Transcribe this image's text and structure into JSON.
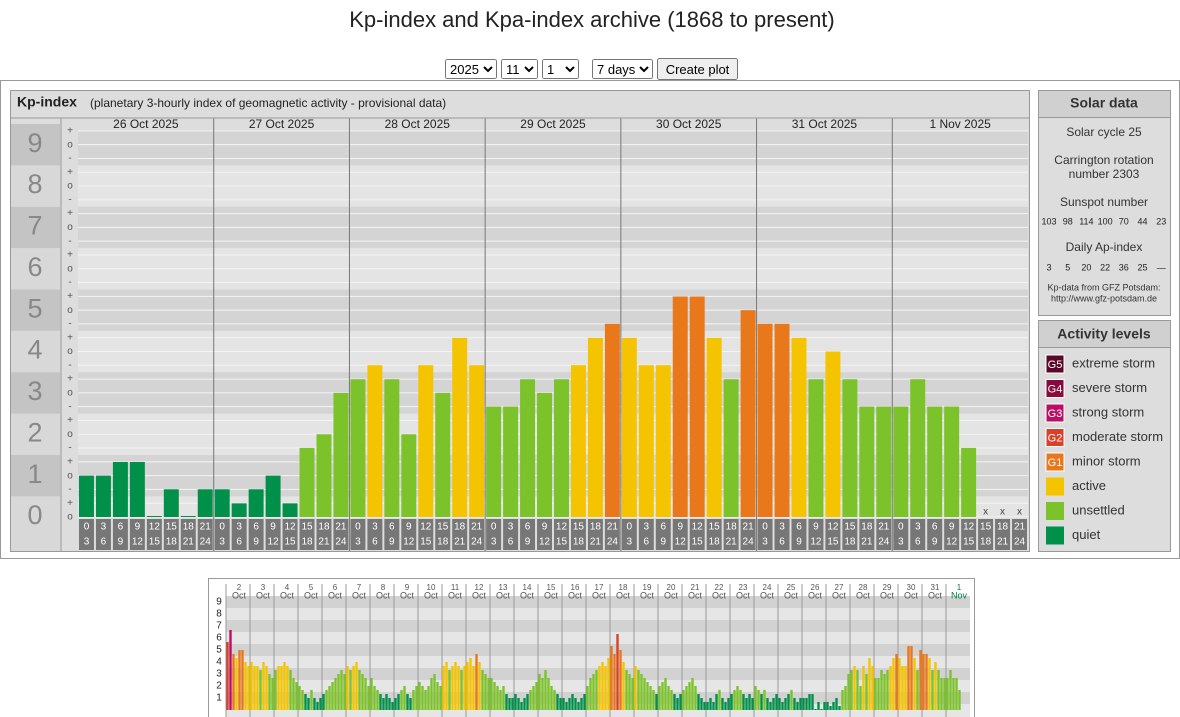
{
  "page": {
    "title": "Kp-index and Kpa-index archive (1868 to present)",
    "controls": {
      "year": "2025",
      "month": "11",
      "day": "1",
      "span": "7 days",
      "button": "Create plot"
    }
  },
  "chart_data": [
    {
      "type": "bar",
      "title": "Kp-index",
      "subtitle": "(planetary 3-hourly index of geomagnetic activity - provisional data)",
      "days": [
        "26 Oct 2025",
        "27 Oct 2025",
        "28 Oct 2025",
        "29 Oct 2025",
        "30 Oct 2025",
        "31 Oct 2025",
        "1 Nov 2025"
      ],
      "hours": [
        [
          "0",
          "3"
        ],
        [
          "3",
          "6"
        ],
        [
          "6",
          "9"
        ],
        [
          "9",
          "12"
        ],
        [
          "12",
          "15"
        ],
        [
          "15",
          "18"
        ],
        [
          "18",
          "21"
        ],
        [
          "21",
          "24"
        ]
      ],
      "values": [
        1,
        1,
        1.33,
        1.33,
        0,
        0.67,
        0,
        0.67,
        0.67,
        0.33,
        0.67,
        1,
        0.33,
        1.67,
        2,
        3,
        3.33,
        3.67,
        3.33,
        2,
        3.67,
        3,
        4.33,
        3.67,
        2.67,
        2.67,
        3.33,
        3,
        3.33,
        3.67,
        4.33,
        4.67,
        4.33,
        3.67,
        3.67,
        5.33,
        5.33,
        4.33,
        3.33,
        5,
        4.67,
        4.67,
        4.33,
        3.33,
        4,
        3.33,
        2.67,
        2.67,
        2.67,
        3.33,
        2.67,
        2.67,
        1.67,
        null,
        null,
        null
      ],
      "colors": [
        "#00904a",
        "#00904a",
        "#00904a",
        "#00904a",
        "#00904a",
        "#00904a",
        "#00904a",
        "#00904a",
        "#00904a",
        "#00904a",
        "#00904a",
        "#00904a",
        "#00904a",
        "#7cc22a",
        "#7cc22a",
        "#7cc22a",
        "#7cc22a",
        "#f5c400",
        "#7cc22a",
        "#7cc22a",
        "#f5c400",
        "#7cc22a",
        "#f5c400",
        "#f5c400",
        "#7cc22a",
        "#7cc22a",
        "#7cc22a",
        "#7cc22a",
        "#7cc22a",
        "#f5c400",
        "#f5c400",
        "#e8781a",
        "#f5c400",
        "#f5c400",
        "#f5c400",
        "#e8781a",
        "#e8781a",
        "#f5c400",
        "#7cc22a",
        "#e8781a",
        "#e8781a",
        "#e8781a",
        "#f5c400",
        "#7cc22a",
        "#f5c400",
        "#7cc22a",
        "#7cc22a",
        "#7cc22a",
        "#7cc22a",
        "#7cc22a",
        "#7cc22a",
        "#7cc22a",
        "#7cc22a",
        null,
        null,
        null
      ],
      "ylim": [
        0,
        9.33
      ],
      "yticks": [
        0,
        1,
        2,
        3,
        4,
        5,
        6,
        7,
        8,
        9
      ],
      "minor_labels": [
        "-",
        "o",
        "+"
      ],
      "missing_label": "x"
    },
    {
      "type": "bar",
      "days": [
        [
          "2",
          "Oct"
        ],
        [
          "3",
          "Oct"
        ],
        [
          "4",
          "Oct"
        ],
        [
          "5",
          "Oct"
        ],
        [
          "6",
          "Oct"
        ],
        [
          "7",
          "Oct"
        ],
        [
          "8",
          "Oct"
        ],
        [
          "9",
          "Oct"
        ],
        [
          "10",
          "Oct"
        ],
        [
          "11",
          "Oct"
        ],
        [
          "12",
          "Oct"
        ],
        [
          "13",
          "Oct"
        ],
        [
          "14",
          "Oct"
        ],
        [
          "15",
          "Oct"
        ],
        [
          "16",
          "Oct"
        ],
        [
          "17",
          "Oct"
        ],
        [
          "18",
          "Oct"
        ],
        [
          "19",
          "Oct"
        ],
        [
          "20",
          "Oct"
        ],
        [
          "21",
          "Oct"
        ],
        [
          "22",
          "Oct"
        ],
        [
          "23",
          "Oct"
        ],
        [
          "24",
          "Oct"
        ],
        [
          "25",
          "Oct"
        ],
        [
          "26",
          "Oct"
        ],
        [
          "27",
          "Oct"
        ],
        [
          "28",
          "Oct"
        ],
        [
          "29",
          "Oct"
        ],
        [
          "30",
          "Oct"
        ],
        [
          "31",
          "Oct"
        ],
        [
          "1",
          "Nov"
        ]
      ],
      "values": [
        5.67,
        6.67,
        4.67,
        4.33,
        5,
        5,
        4,
        3.67,
        4,
        3.67,
        3.67,
        3.33,
        4,
        3.67,
        3,
        2.67,
        3.33,
        3.67,
        3.67,
        4,
        3.67,
        3.33,
        2.67,
        2.33,
        2,
        1.67,
        1.33,
        1,
        1.67,
        1,
        0.67,
        1,
        1.33,
        1.67,
        2,
        2.33,
        2.67,
        3,
        3.33,
        3,
        3.67,
        3.33,
        3.67,
        4,
        3.33,
        3,
        2.67,
        2,
        2.67,
        2,
        1.67,
        1.33,
        1,
        1.33,
        1,
        0.67,
        1,
        1.33,
        1.67,
        2,
        1.33,
        1,
        1.67,
        2,
        2.33,
        2,
        1.67,
        2,
        2.67,
        3,
        2.33,
        2,
        3.67,
        4,
        3.33,
        3.67,
        4,
        3.67,
        3.33,
        3.67,
        4,
        4.33,
        3.67,
        4.67,
        4,
        3.33,
        3,
        2.67,
        2.67,
        2.33,
        2,
        1.67,
        2,
        1.33,
        1,
        1,
        1.33,
        1,
        0.67,
        1,
        1.33,
        1.67,
        2,
        2.33,
        3,
        2.67,
        3.33,
        2.67,
        2,
        1.67,
        1.33,
        1,
        1,
        0.67,
        1,
        1.33,
        1,
        0.67,
        1,
        1.33,
        2,
        2.67,
        3,
        3.33,
        3.67,
        4,
        3.67,
        4.33,
        5.33,
        4.67,
        6.33,
        5,
        4,
        3.33,
        3,
        2.67,
        3.67,
        3.33,
        3,
        2.67,
        2.33,
        2,
        1.67,
        1.33,
        2,
        2.33,
        2.67,
        2,
        1.67,
        1.33,
        1,
        1.33,
        1.67,
        2,
        2.33,
        2.67,
        2,
        1.33,
        1,
        0.67,
        0.67,
        1,
        0.67,
        1.33,
        1.67,
        1,
        0.67,
        1,
        1.33,
        1.67,
        2,
        1.67,
        1.33,
        1,
        1.33,
        1,
        2,
        1.67,
        1.33,
        1.67,
        1,
        0.67,
        1,
        1.33,
        1,
        0.67,
        1,
        1.33,
        1.67,
        1,
        0.67,
        1,
        1,
        1,
        1.33,
        1.33,
        0,
        0.67,
        0,
        0.67,
        0.67,
        0.33,
        0.67,
        1,
        0.33,
        1.67,
        2,
        3,
        3.33,
        3.67,
        3.33,
        2,
        3.67,
        3,
        4.33,
        3.67,
        2.67,
        2.67,
        3.33,
        3,
        3.33,
        3.67,
        4.33,
        4.67,
        4.33,
        3.67,
        3.67,
        5.33,
        5.33,
        4.33,
        3.33,
        5,
        4.67,
        4.67,
        4.33,
        3.33,
        4,
        3.33,
        2.67,
        2.67,
        2.67,
        3.33,
        2.67,
        2.67,
        1.67,
        null,
        null,
        null
      ],
      "colors": [
        "#d8402a",
        "#b80f62",
        "#e8781a",
        "#f5c400",
        "#e8781a",
        "#e8781a",
        "#f5c400",
        "#f5c400",
        "#f5c400",
        "#f5c400",
        "#f5c400",
        "#7cc22a",
        "#f5c400",
        "#f5c400",
        "#7cc22a",
        "#7cc22a",
        "#7cc22a",
        "#f5c400",
        "#f5c400",
        "#f5c400",
        "#f5c400",
        "#7cc22a",
        "#7cc22a",
        "#7cc22a",
        "#7cc22a",
        "#7cc22a",
        "#00904a",
        "#00904a",
        "#7cc22a",
        "#00904a",
        "#00904a",
        "#00904a",
        "#00904a",
        "#7cc22a",
        "#7cc22a",
        "#7cc22a",
        "#7cc22a",
        "#7cc22a",
        "#7cc22a",
        "#7cc22a",
        "#f5c400",
        "#7cc22a",
        "#f5c400",
        "#f5c400",
        "#7cc22a",
        "#7cc22a",
        "#7cc22a",
        "#7cc22a",
        "#7cc22a",
        "#7cc22a",
        "#7cc22a",
        "#00904a",
        "#00904a",
        "#00904a",
        "#00904a",
        "#00904a",
        "#00904a",
        "#00904a",
        "#7cc22a",
        "#7cc22a",
        "#00904a",
        "#00904a",
        "#7cc22a",
        "#7cc22a",
        "#7cc22a",
        "#7cc22a",
        "#7cc22a",
        "#7cc22a",
        "#7cc22a",
        "#7cc22a",
        "#7cc22a",
        "#7cc22a",
        "#f5c400",
        "#f5c400",
        "#7cc22a",
        "#f5c400",
        "#f5c400",
        "#f5c400",
        "#7cc22a",
        "#f5c400",
        "#f5c400",
        "#f5c400",
        "#f5c400",
        "#e8781a",
        "#f5c400",
        "#7cc22a",
        "#7cc22a",
        "#7cc22a",
        "#7cc22a",
        "#7cc22a",
        "#7cc22a",
        "#7cc22a",
        "#7cc22a",
        "#00904a",
        "#00904a",
        "#00904a",
        "#00904a",
        "#00904a",
        "#00904a",
        "#00904a",
        "#00904a",
        "#7cc22a",
        "#7cc22a",
        "#7cc22a",
        "#7cc22a",
        "#7cc22a",
        "#7cc22a",
        "#7cc22a",
        "#7cc22a",
        "#7cc22a",
        "#00904a",
        "#00904a",
        "#00904a",
        "#00904a",
        "#00904a",
        "#00904a",
        "#00904a",
        "#00904a",
        "#00904a",
        "#00904a",
        "#7cc22a",
        "#7cc22a",
        "#7cc22a",
        "#7cc22a",
        "#f5c400",
        "#f5c400",
        "#f5c400",
        "#f5c400",
        "#e8781a",
        "#e8781a",
        "#d8402a",
        "#e8781a",
        "#f5c400",
        "#7cc22a",
        "#7cc22a",
        "#7cc22a",
        "#f5c400",
        "#7cc22a",
        "#7cc22a",
        "#7cc22a",
        "#7cc22a",
        "#7cc22a",
        "#7cc22a",
        "#00904a",
        "#7cc22a",
        "#7cc22a",
        "#7cc22a",
        "#7cc22a",
        "#7cc22a",
        "#00904a",
        "#00904a",
        "#00904a",
        "#7cc22a",
        "#7cc22a",
        "#7cc22a",
        "#7cc22a",
        "#7cc22a",
        "#00904a",
        "#00904a",
        "#00904a",
        "#00904a",
        "#00904a",
        "#00904a",
        "#00904a",
        "#7cc22a",
        "#00904a",
        "#00904a",
        "#00904a",
        "#00904a",
        "#7cc22a",
        "#7cc22a",
        "#7cc22a",
        "#00904a",
        "#00904a",
        "#00904a",
        "#00904a",
        "#7cc22a",
        "#7cc22a",
        "#00904a",
        "#7cc22a",
        "#00904a",
        "#00904a",
        "#00904a",
        "#00904a",
        "#00904a",
        "#00904a",
        "#00904a",
        "#00904a",
        "#7cc22a",
        "#00904a",
        "#00904a",
        "#00904a",
        "#00904a",
        "#00904a",
        "#00904a",
        "#00904a",
        "#00904a",
        "#00904a",
        "#00904a",
        "#00904a",
        "#00904a",
        "#00904a",
        "#00904a",
        "#00904a",
        "#00904a",
        "#7cc22a",
        "#7cc22a",
        "#7cc22a",
        "#7cc22a",
        "#f5c400",
        "#7cc22a",
        "#7cc22a",
        "#f5c400",
        "#7cc22a",
        "#f5c400",
        "#f5c400",
        "#7cc22a",
        "#7cc22a",
        "#7cc22a",
        "#7cc22a",
        "#7cc22a",
        "#f5c400",
        "#f5c400",
        "#e8781a",
        "#f5c400",
        "#f5c400",
        "#f5c400",
        "#e8781a",
        "#e8781a",
        "#f5c400",
        "#7cc22a",
        "#e8781a",
        "#e8781a",
        "#e8781a",
        "#f5c400",
        "#7cc22a",
        "#f5c400",
        "#7cc22a",
        "#7cc22a",
        "#7cc22a",
        "#7cc22a",
        "#7cc22a",
        "#7cc22a",
        "#7cc22a",
        "#7cc22a",
        null,
        null,
        null
      ],
      "ylim": [
        0,
        9.5
      ],
      "yticks": [
        1,
        2,
        3,
        4,
        5,
        6,
        7,
        8,
        9
      ]
    }
  ],
  "solar": {
    "title": "Solar data",
    "cycle": "Solar cycle 25",
    "carrington": [
      "Carrington rotation",
      "number 2303"
    ],
    "sunspot_title": "Sunspot number",
    "sunspot_numbers": [
      103,
      98,
      114,
      100,
      70,
      44,
      23
    ],
    "ap_title": "Daily Ap-index",
    "ap_index": [
      3,
      5,
      20,
      22,
      36,
      25,
      "—"
    ],
    "source": [
      "Kp-data from GFZ Potsdam:",
      "http://www.gfz-potsdam.de"
    ]
  },
  "legend": {
    "title": "Activity levels",
    "items": [
      {
        "badge": "G5",
        "label": "extreme storm",
        "color": "#5a0828"
      },
      {
        "badge": "G4",
        "label": "severe storm",
        "color": "#860a3c"
      },
      {
        "badge": "G3",
        "label": "strong storm",
        "color": "#b80f62"
      },
      {
        "badge": "G2",
        "label": "moderate storm",
        "color": "#d8402a"
      },
      {
        "badge": "G1",
        "label": "minor storm",
        "color": "#e8781a"
      },
      {
        "label": "active",
        "color": "#f5c400"
      },
      {
        "label": "unsettled",
        "color": "#7cc22a"
      },
      {
        "label": "quiet",
        "color": "#00904a"
      }
    ]
  }
}
